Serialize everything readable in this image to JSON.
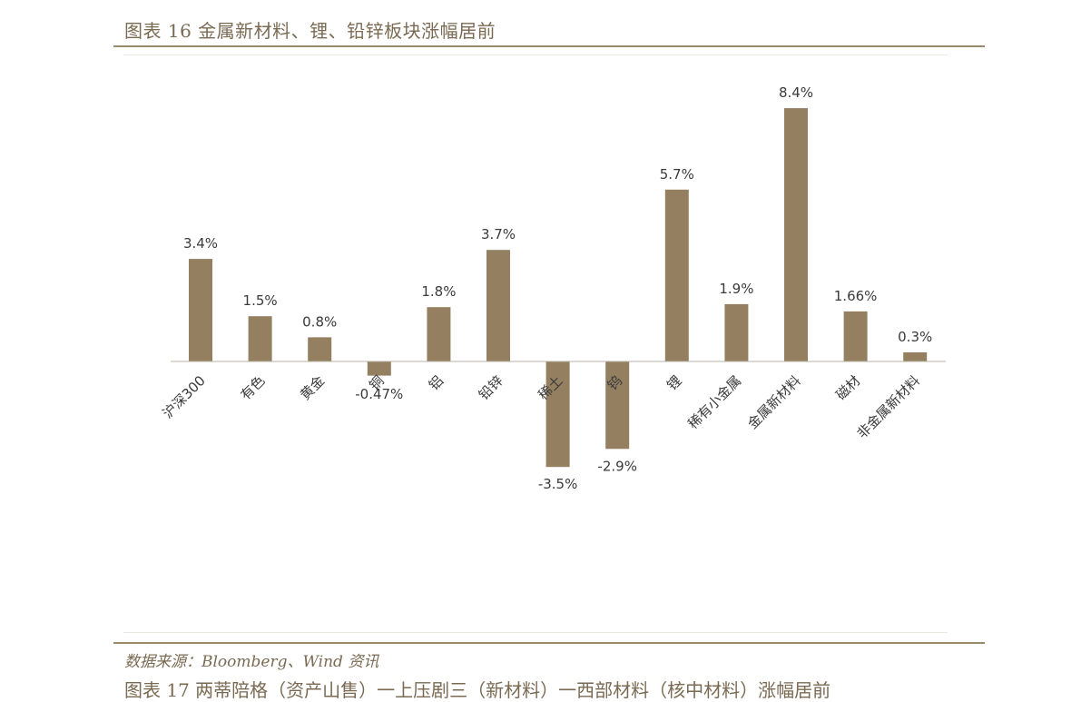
{
  "figure": {
    "title": "图表 16 金属新材料、锂、铅锌板块涨幅居前",
    "source": "数据来源：Bloomberg、Wind 资讯",
    "next_caption": "图表 17 两蒂陪格（资产山售）一上压剧三（新材料）一西部材料（核中材料）涨幅居前"
  },
  "chart_data": {
    "type": "bar",
    "title": "图表 16 金属新材料、锂、铅锌板块涨幅居前",
    "xlabel": "",
    "ylabel": "",
    "ylim": [
      -4.5,
      9.5
    ],
    "grid": false,
    "legend": "none",
    "bar_color": "#948060",
    "categories": [
      "沪深300",
      "有色",
      "黄金",
      "铜",
      "铝",
      "铅锌",
      "稀土",
      "钨",
      "锂",
      "稀有小金属",
      "金属新材料",
      "磁材",
      "非金属新材料"
    ],
    "values": [
      3.4,
      1.5,
      0.8,
      -0.47,
      1.8,
      3.7,
      -3.5,
      -2.9,
      5.7,
      1.9,
      8.4,
      1.66,
      0.3
    ],
    "labels": [
      "3.4%",
      "1.5%",
      "0.8%",
      "-0.47%",
      "1.8%",
      "3.7%",
      "-3.5%",
      "-2.9%",
      "5.7%",
      "1.9%",
      "8.4%",
      "1.66%",
      "0.3%"
    ]
  }
}
